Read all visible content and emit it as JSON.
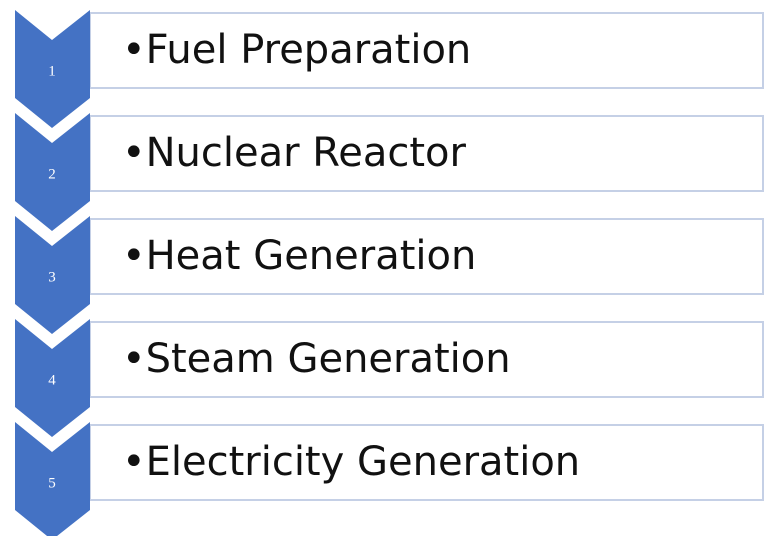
{
  "steps": [
    {
      "number": "1",
      "label": "•Fuel Preparation"
    },
    {
      "number": "2",
      "label": "•Nuclear Reactor"
    },
    {
      "number": "3",
      "label": "•Heat Generation"
    },
    {
      "number": "4",
      "label": "•Steam Generation"
    },
    {
      "number": "5",
      "label": "•Electricity Generation"
    }
  ]
}
